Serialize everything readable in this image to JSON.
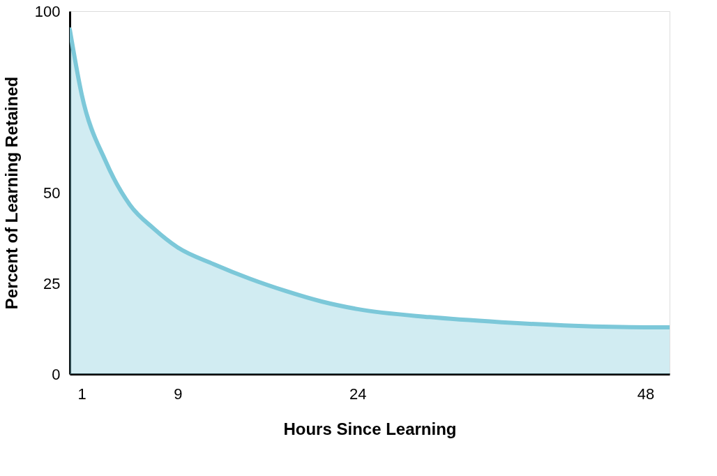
{
  "chart_data": {
    "type": "area",
    "xlabel": "Hours Since Learning",
    "ylabel": "Percent of Learning Retained",
    "x": [
      0,
      1,
      3,
      5,
      7,
      9,
      12,
      15,
      18,
      21,
      24,
      30,
      36,
      42,
      48,
      50
    ],
    "series": [
      {
        "color": "#7cc8d9",
        "values": [
          95,
          77,
          58.6,
          46.7,
          40.1,
          34.9,
          30.3,
          26.3,
          22.9,
          20,
          17.9,
          15.7,
          14.3,
          13.3,
          12.9,
          12.9
        ]
      }
    ],
    "xlim": [
      0,
      50
    ],
    "xticks": [
      1,
      9,
      24,
      48
    ],
    "ylim": [
      0,
      100
    ],
    "yticks": [
      0,
      25,
      50,
      100
    ],
    "grid": false
  }
}
